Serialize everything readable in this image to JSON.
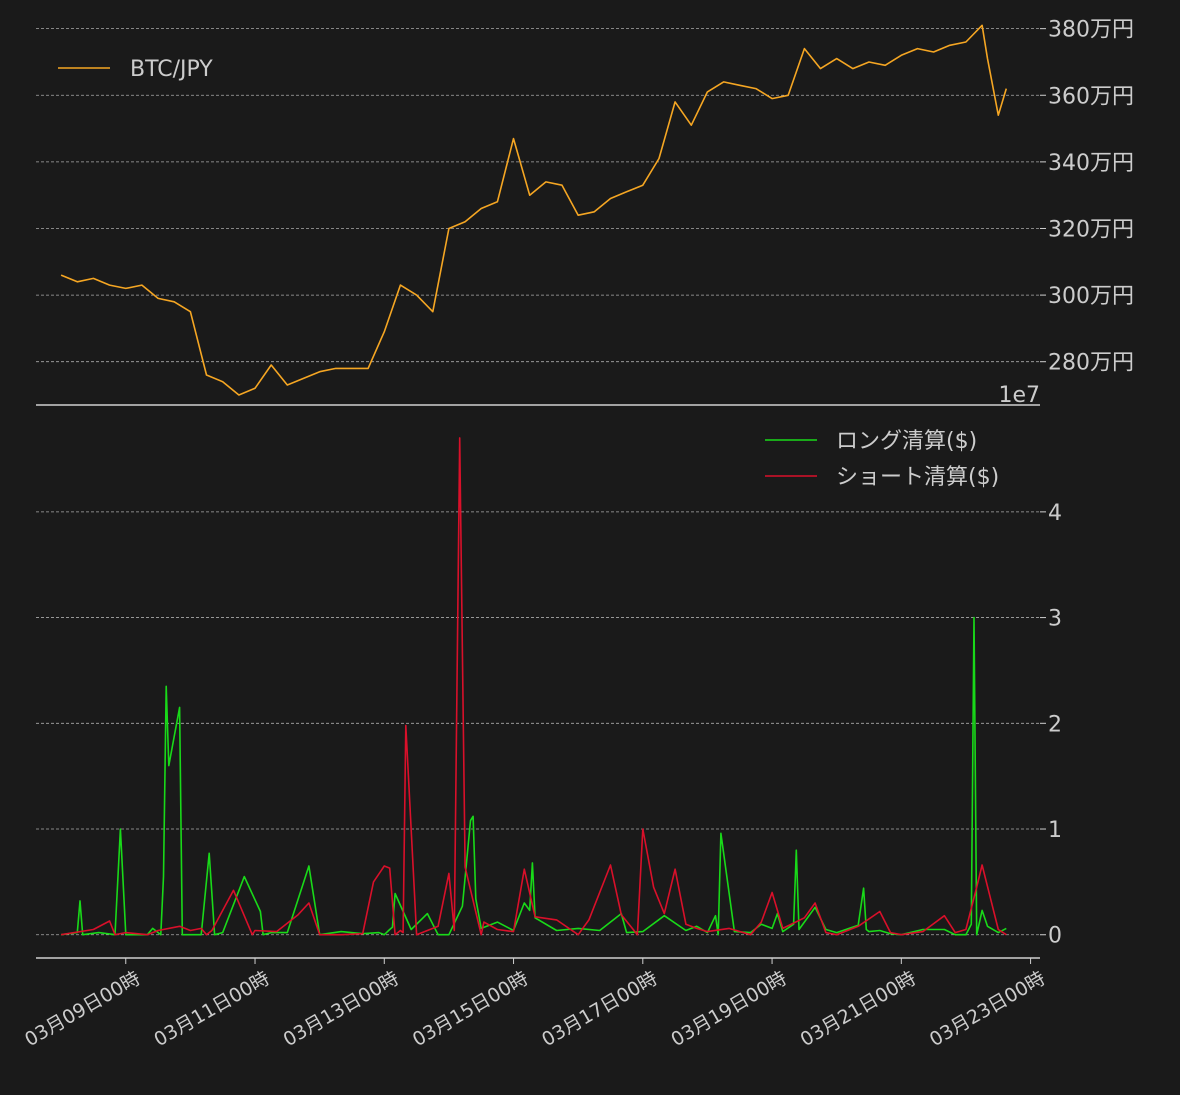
{
  "colors": {
    "background": "#1a1a1a",
    "text": "#cccccc",
    "grid": "#aaaaaa",
    "btc": "#f5a623",
    "long": "#19d919",
    "short": "#d9102a"
  },
  "chart_data": [
    {
      "type": "line",
      "panel": "top",
      "series": [
        {
          "name": "BTC/JPY",
          "x": [
            "03-08 00:00",
            "03-08 06:00",
            "03-08 12:00",
            "03-08 18:00",
            "03-09 00:00",
            "03-09 06:00",
            "03-09 12:00",
            "03-09 18:00",
            "03-10 00:00",
            "03-10 06:00",
            "03-10 12:00",
            "03-10 18:00",
            "03-11 00:00",
            "03-11 06:00",
            "03-11 12:00",
            "03-11 18:00",
            "03-12 00:00",
            "03-12 06:00",
            "03-12 12:00",
            "03-12 18:00",
            "03-13 00:00",
            "03-13 06:00",
            "03-13 12:00",
            "03-13 18:00",
            "03-14 00:00",
            "03-14 06:00",
            "03-14 12:00",
            "03-14 18:00",
            "03-15 00:00",
            "03-15 06:00",
            "03-15 12:00",
            "03-15 18:00",
            "03-16 00:00",
            "03-16 06:00",
            "03-16 12:00",
            "03-16 18:00",
            "03-17 00:00",
            "03-17 06:00",
            "03-17 12:00",
            "03-17 18:00",
            "03-18 00:00",
            "03-18 06:00",
            "03-18 12:00",
            "03-18 18:00",
            "03-19 00:00",
            "03-19 06:00",
            "03-19 12:00",
            "03-19 18:00",
            "03-20 00:00",
            "03-20 06:00",
            "03-20 12:00",
            "03-20 18:00",
            "03-21 00:00",
            "03-21 06:00",
            "03-21 12:00",
            "03-21 18:00",
            "03-22 00:00",
            "03-22 06:00",
            "03-22 08:00",
            "03-22 12:00",
            "03-22 15:00"
          ],
          "values": [
            3060000,
            3040000,
            3050000,
            3030000,
            3020000,
            3030000,
            2990000,
            2980000,
            2950000,
            2760000,
            2740000,
            2700000,
            2720000,
            2790000,
            2730000,
            2750000,
            2770000,
            2780000,
            2780000,
            2780000,
            2890000,
            3030000,
            3000000,
            2950000,
            3200000,
            3220000,
            3260000,
            3280000,
            3470000,
            3300000,
            3340000,
            3330000,
            3240000,
            3250000,
            3290000,
            3310000,
            3330000,
            3410000,
            3580000,
            3510000,
            3610000,
            3640000,
            3630000,
            3620000,
            3590000,
            3600000,
            3740000,
            3680000,
            3710000,
            3680000,
            3700000,
            3690000,
            3720000,
            3740000,
            3730000,
            3750000,
            3760000,
            3810000,
            3710000,
            3540000,
            3620000
          ]
        }
      ],
      "ylim": [
        2670000,
        3850000
      ],
      "y_ticks": [
        2800000,
        3000000,
        3200000,
        3400000,
        3600000,
        3800000
      ],
      "y_tick_labels": [
        "280万円",
        "300万円",
        "320万円",
        "340万円",
        "360万円",
        "380万円"
      ],
      "y_offset_label": "1e7",
      "grid": true,
      "legend_position": "top-left"
    },
    {
      "type": "line",
      "panel": "bottom",
      "series": [
        {
          "name": "ロング清算($)",
          "x": [
            "03-08 00:00",
            "03-08 06:00",
            "03-08 07:00",
            "03-08 08:00",
            "03-08 14:00",
            "03-08 20:00",
            "03-08 22:00",
            "03-09 00:00",
            "03-09 08:00",
            "03-09 10:00",
            "03-09 13:00",
            "03-09 14:00",
            "03-09 15:00",
            "03-09 16:00",
            "03-09 20:00",
            "03-09 21:00",
            "03-10 00:00",
            "03-10 04:00",
            "03-10 07:00",
            "03-10 09:00",
            "03-10 12:00",
            "03-10 20:00",
            "03-11 02:00",
            "03-11 03:00",
            "03-11 06:00",
            "03-11 12:00",
            "03-11 20:00",
            "03-12 00:00",
            "03-12 08:00",
            "03-12 16:00",
            "03-12 22:00",
            "03-13 00:00",
            "03-13 02:00",
            "03-13 03:00",
            "03-13 04:00",
            "03-13 10:00",
            "03-13 16:00",
            "03-13 20:00",
            "03-14 00:00",
            "03-14 05:00",
            "03-14 08:00",
            "03-14 09:00",
            "03-14 10:00",
            "03-14 12:00",
            "03-14 18:00",
            "03-15 00:00",
            "03-15 04:00",
            "03-15 06:00",
            "03-15 07:00",
            "03-15 08:00",
            "03-15 16:00",
            "03-16 00:00",
            "03-16 08:00",
            "03-16 16:00",
            "03-16 18:00",
            "03-17 00:00",
            "03-17 08:00",
            "03-17 16:00",
            "03-17 20:00",
            "03-18 00:00",
            "03-18 03:00",
            "03-18 04:00",
            "03-18 05:00",
            "03-18 10:00",
            "03-18 16:00",
            "03-18 20:00",
            "03-19 00:00",
            "03-19 02:00",
            "03-19 04:00",
            "03-19 08:00",
            "03-19 09:00",
            "03-19 10:00",
            "03-19 16:00",
            "03-19 20:00",
            "03-20 00:00",
            "03-20 08:00",
            "03-20 10:00",
            "03-20 11:00",
            "03-20 12:00",
            "03-20 16:00",
            "03-20 20:00",
            "03-21 00:00",
            "03-21 08:00",
            "03-21 16:00",
            "03-21 20:00",
            "03-22 00:00",
            "03-22 02:00",
            "03-22 03:00",
            "03-22 04:00",
            "03-22 06:00",
            "03-22 08:00",
            "03-22 12:00",
            "03-22 15:00"
          ],
          "values": [
            0.0,
            0.02,
            0.32,
            0.0,
            0.02,
            0.0,
            1.0,
            0.0,
            0.0,
            0.06,
            0.0,
            0.55,
            2.35,
            1.6,
            2.15,
            0.0,
            0.0,
            0.0,
            0.77,
            0.0,
            0.02,
            0.55,
            0.22,
            0.0,
            0.02,
            0.02,
            0.65,
            0.0,
            0.03,
            0.01,
            0.02,
            0.0,
            0.05,
            0.07,
            0.39,
            0.05,
            0.2,
            0.0,
            0.0,
            0.27,
            1.08,
            1.12,
            0.34,
            0.06,
            0.12,
            0.04,
            0.3,
            0.23,
            0.68,
            0.16,
            0.04,
            0.06,
            0.04,
            0.2,
            0.02,
            0.03,
            0.18,
            0.04,
            0.08,
            0.02,
            0.18,
            0.0,
            0.96,
            0.03,
            0.02,
            0.1,
            0.06,
            0.2,
            0.03,
            0.1,
            0.8,
            0.05,
            0.26,
            0.05,
            0.02,
            0.09,
            0.44,
            0.05,
            0.03,
            0.04,
            0.01,
            0.0,
            0.05,
            0.05,
            0.0,
            0.0,
            0.1,
            3.0,
            0.0,
            0.23,
            0.08,
            0.02,
            0.06
          ]
        },
        {
          "name": "ショート清算($)",
          "x": [
            "03-08 00:00",
            "03-08 12:00",
            "03-08 18:00",
            "03-08 20:00",
            "03-09 00:00",
            "03-09 08:00",
            "03-09 12:00",
            "03-09 20:00",
            "03-10 00:00",
            "03-10 04:00",
            "03-10 06:00",
            "03-10 08:00",
            "03-10 16:00",
            "03-10 23:00",
            "03-11 00:00",
            "03-11 08:00",
            "03-11 16:00",
            "03-11 20:00",
            "03-12 00:00",
            "03-12 08:00",
            "03-12 16:00",
            "03-12 20:00",
            "03-13 00:00",
            "03-13 02:00",
            "03-13 04:00",
            "03-13 06:00",
            "03-13 07:00",
            "03-13 08:00",
            "03-13 12:00",
            "03-13 20:00",
            "03-14 00:00",
            "03-14 02:00",
            "03-14 04:00",
            "03-14 06:00",
            "03-14 12:00",
            "03-14 13:00",
            "03-14 18:00",
            "03-15 00:00",
            "03-15 04:00",
            "03-15 08:00",
            "03-15 16:00",
            "03-16 00:00",
            "03-16 04:00",
            "03-16 12:00",
            "03-16 16:00",
            "03-16 22:00",
            "03-17 00:00",
            "03-17 04:00",
            "03-17 08:00",
            "03-17 12:00",
            "03-17 16:00",
            "03-17 20:00",
            "03-18 00:00",
            "03-18 08:00",
            "03-18 16:00",
            "03-18 20:00",
            "03-19 00:00",
            "03-19 04:00",
            "03-19 12:00",
            "03-19 16:00",
            "03-19 20:00",
            "03-20 00:00",
            "03-20 08:00",
            "03-20 16:00",
            "03-20 20:00",
            "03-21 00:00",
            "03-21 08:00",
            "03-21 16:00",
            "03-21 20:00",
            "03-22 00:00",
            "03-22 04:00",
            "03-22 06:00",
            "03-22 12:00",
            "03-22 15:00"
          ],
          "values": [
            0.0,
            0.05,
            0.13,
            0.0,
            0.02,
            0.0,
            0.04,
            0.08,
            0.04,
            0.06,
            0.0,
            0.04,
            0.42,
            0.0,
            0.04,
            0.03,
            0.19,
            0.3,
            0.0,
            0.0,
            0.01,
            0.5,
            0.65,
            0.63,
            0.0,
            0.04,
            0.02,
            1.98,
            0.0,
            0.08,
            0.58,
            0.04,
            4.7,
            0.64,
            0.0,
            0.12,
            0.05,
            0.03,
            0.62,
            0.17,
            0.14,
            0.0,
            0.14,
            0.66,
            0.19,
            0.0,
            1.0,
            0.45,
            0.2,
            0.62,
            0.1,
            0.06,
            0.03,
            0.06,
            0.0,
            0.12,
            0.4,
            0.06,
            0.16,
            0.3,
            0.02,
            0.0,
            0.08,
            0.22,
            0.02,
            0.0,
            0.03,
            0.18,
            0.02,
            0.05,
            0.45,
            0.66,
            0.05,
            0.0
          ]
        }
      ],
      "ylim": [
        -0.22,
        4.85
      ],
      "y_ticks": [
        0,
        1,
        2,
        3,
        4
      ],
      "y_tick_labels": [
        "0",
        "1",
        "2",
        "3",
        "4"
      ],
      "x_ticks": [
        "03-09 00:00",
        "03-11 00:00",
        "03-13 00:00",
        "03-15 00:00",
        "03-17 00:00",
        "03-19 00:00",
        "03-21 00:00",
        "03-23 00:00"
      ],
      "x_tick_labels": [
        "03月09日00時",
        "03月11日00時",
        "03月13日00時",
        "03月15日00時",
        "03月17日00時",
        "03月19日00時",
        "03月21日00時",
        "03月23日00時"
      ],
      "grid": true,
      "legend_position": "top-right"
    }
  ]
}
